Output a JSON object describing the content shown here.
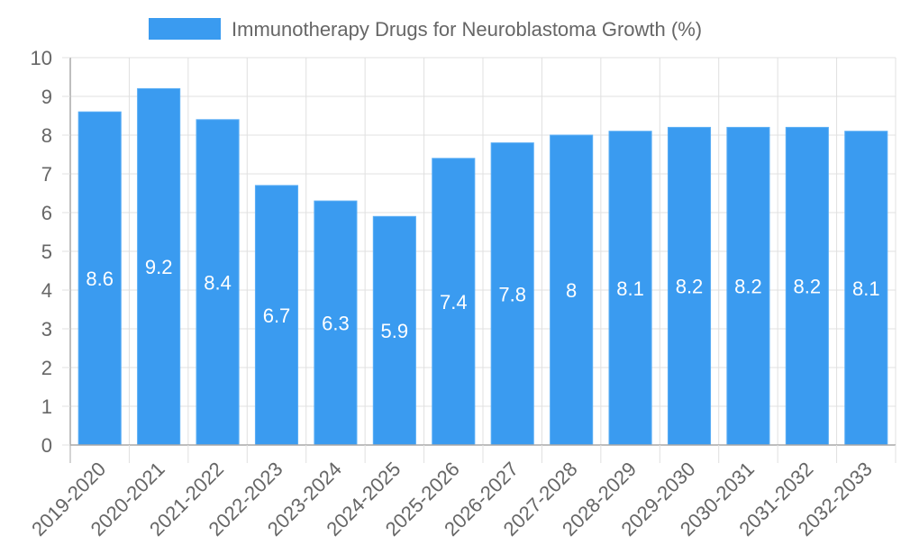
{
  "chart_data": {
    "type": "bar",
    "title": "",
    "legend": [
      {
        "label": "Immunotherapy Drugs for Neuroblastoma Growth (%)",
        "color": "#3a9bf0"
      }
    ],
    "legend_position": "top",
    "categories": [
      "2019-2020",
      "2020-2021",
      "2021-2022",
      "2022-2023",
      "2023-2024",
      "2024-2025",
      "2025-2026",
      "2026-2027",
      "2027-2028",
      "2028-2029",
      "2029-2030",
      "2030-2031",
      "2031-2032",
      "2032-2033"
    ],
    "series": [
      {
        "name": "Immunotherapy Drugs for Neuroblastoma Growth (%)",
        "color": "#3a9bf0",
        "border_color": "#5aaef5",
        "values": [
          8.6,
          9.2,
          8.4,
          6.7,
          6.3,
          5.9,
          7.4,
          7.8,
          8,
          8.1,
          8.2,
          8.2,
          8.2,
          8.1
        ]
      }
    ],
    "value_labels": [
      "8.6",
      "9.2",
      "8.4",
      "6.7",
      "6.3",
      "5.9",
      "7.4",
      "7.8",
      "8",
      "8.1",
      "8.2",
      "8.2",
      "8.2",
      "8.1"
    ],
    "xlabel": "",
    "ylabel": "",
    "ylim": [
      0,
      10
    ],
    "yticks": [
      0,
      1,
      2,
      3,
      4,
      5,
      6,
      7,
      8,
      9,
      10
    ],
    "x_tick_rotation": -45,
    "grid": true,
    "colors": {
      "grid": "#e0e0e0",
      "axis": "#a8a8a8",
      "tick_text": "#666666",
      "bar_label": "#ffffff"
    }
  }
}
